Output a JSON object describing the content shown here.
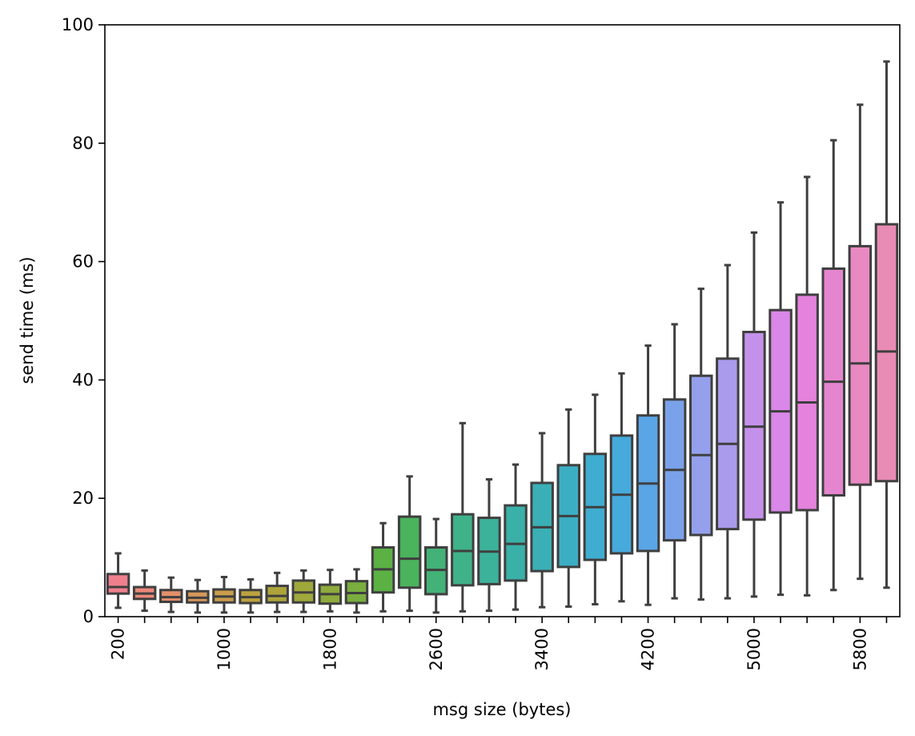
{
  "chart_data": {
    "type": "box",
    "title": "",
    "xlabel": "msg size (bytes)",
    "ylabel": "send time (ms)",
    "ylim": [
      0,
      100
    ],
    "yticks": [
      0,
      20,
      40,
      60,
      80,
      100
    ],
    "ytick_labels": [
      "0",
      "20",
      "40",
      "60",
      "80",
      "100"
    ],
    "xtick_labels": [
      "200",
      "1000",
      "1800",
      "2600",
      "3400",
      "4200",
      "5000",
      "5800"
    ],
    "grid": false,
    "legend": "none",
    "categories": [
      200,
      400,
      600,
      800,
      1000,
      1200,
      1400,
      1600,
      1800,
      2000,
      2200,
      2400,
      2600,
      2800,
      3000,
      3200,
      3400,
      3600,
      3800,
      4000,
      4200,
      4400,
      4600,
      4800,
      5000,
      5200,
      5400,
      5600,
      5800,
      6000
    ],
    "boxes": [
      {
        "whislo": 1.5,
        "q1": 3.9,
        "med": 5.0,
        "q3": 7.2,
        "whishi": 10.7,
        "color": "#f07f8c"
      },
      {
        "whislo": 1.0,
        "q1": 3.0,
        "med": 3.9,
        "q3": 5.0,
        "whishi": 7.8,
        "color": "#ec887a"
      },
      {
        "whislo": 0.8,
        "q1": 2.5,
        "med": 3.3,
        "q3": 4.5,
        "whishi": 6.6,
        "color": "#e3906b"
      },
      {
        "whislo": 0.7,
        "q1": 2.4,
        "med": 3.2,
        "q3": 4.3,
        "whishi": 6.2,
        "color": "#d6975a"
      },
      {
        "whislo": 0.7,
        "q1": 2.4,
        "med": 3.4,
        "q3": 4.6,
        "whishi": 6.7,
        "color": "#c99e4c"
      },
      {
        "whislo": 0.7,
        "q1": 2.3,
        "med": 3.3,
        "q3": 4.5,
        "whishi": 6.3,
        "color": "#bba23f"
      },
      {
        "whislo": 0.8,
        "q1": 2.4,
        "med": 3.5,
        "q3": 5.2,
        "whishi": 7.4,
        "color": "#ada53b"
      },
      {
        "whislo": 0.8,
        "q1": 2.4,
        "med": 4.1,
        "q3": 6.1,
        "whishi": 7.8,
        "color": "#9fa83a"
      },
      {
        "whislo": 0.9,
        "q1": 2.2,
        "med": 3.8,
        "q3": 5.4,
        "whishi": 7.9,
        "color": "#8eab3c"
      },
      {
        "whislo": 0.7,
        "q1": 2.3,
        "med": 4.0,
        "q3": 6.0,
        "whishi": 8.0,
        "color": "#7aae40"
      },
      {
        "whislo": 0.9,
        "q1": 4.1,
        "med": 8.0,
        "q3": 11.7,
        "whishi": 15.8,
        "color": "#5bb144"
      },
      {
        "whislo": 1.0,
        "q1": 4.9,
        "med": 9.8,
        "q3": 16.9,
        "whishi": 23.7,
        "color": "#4ab35c"
      },
      {
        "whislo": 0.7,
        "q1": 3.8,
        "med": 7.9,
        "q3": 11.7,
        "whishi": 16.5,
        "color": "#43b277"
      },
      {
        "whislo": 0.9,
        "q1": 5.3,
        "med": 11.1,
        "q3": 17.3,
        "whishi": 32.7,
        "color": "#3fb28a"
      },
      {
        "whislo": 1.0,
        "q1": 5.5,
        "med": 11.0,
        "q3": 16.7,
        "whishi": 23.2,
        "color": "#3cb29a"
      },
      {
        "whislo": 1.2,
        "q1": 6.1,
        "med": 12.3,
        "q3": 18.8,
        "whishi": 25.7,
        "color": "#3ab1a8"
      },
      {
        "whislo": 1.6,
        "q1": 7.7,
        "med": 15.1,
        "q3": 22.6,
        "whishi": 31.0,
        "color": "#3ab0b6"
      },
      {
        "whislo": 1.7,
        "q1": 8.4,
        "med": 17.0,
        "q3": 25.6,
        "whishi": 35.0,
        "color": "#3caec3"
      },
      {
        "whislo": 2.1,
        "q1": 9.6,
        "med": 18.5,
        "q3": 27.5,
        "whishi": 37.5,
        "color": "#3eadd0"
      },
      {
        "whislo": 2.6,
        "q1": 10.7,
        "med": 20.6,
        "q3": 30.6,
        "whishi": 41.1,
        "color": "#46aadd"
      },
      {
        "whislo": 2.0,
        "q1": 11.1,
        "med": 22.5,
        "q3": 34.0,
        "whishi": 45.8,
        "color": "#5aa5e6"
      },
      {
        "whislo": 3.1,
        "q1": 12.9,
        "med": 24.8,
        "q3": 36.7,
        "whishi": 49.4,
        "color": "#7aa2ea"
      },
      {
        "whislo": 2.9,
        "q1": 13.8,
        "med": 27.3,
        "q3": 40.7,
        "whishi": 55.4,
        "color": "#94a0ec"
      },
      {
        "whislo": 3.1,
        "q1": 14.8,
        "med": 29.2,
        "q3": 43.6,
        "whishi": 59.4,
        "color": "#aa9bec"
      },
      {
        "whislo": 3.4,
        "q1": 16.4,
        "med": 32.1,
        "q3": 48.1,
        "whishi": 64.9,
        "color": "#c491ea"
      },
      {
        "whislo": 3.7,
        "q1": 17.6,
        "med": 34.7,
        "q3": 51.8,
        "whishi": 70.0,
        "color": "#d987e8"
      },
      {
        "whislo": 3.6,
        "q1": 18.0,
        "med": 36.2,
        "q3": 54.4,
        "whishi": 74.3,
        "color": "#e482dc"
      },
      {
        "whislo": 4.5,
        "q1": 20.5,
        "med": 39.7,
        "q3": 58.8,
        "whishi": 80.5,
        "color": "#e685cf"
      },
      {
        "whislo": 6.4,
        "q1": 22.3,
        "med": 42.8,
        "q3": 62.6,
        "whishi": 86.5,
        "color": "#e989c2"
      },
      {
        "whislo": 4.9,
        "q1": 22.9,
        "med": 44.8,
        "q3": 66.3,
        "whishi": 93.8,
        "color": "#e98cb5"
      }
    ]
  }
}
